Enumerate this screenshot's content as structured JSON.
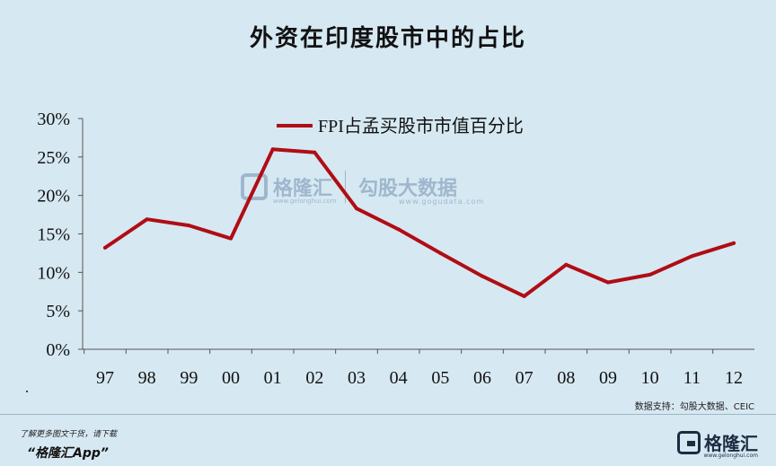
{
  "title": "外资在印度股市中的占比",
  "chart_data": {
    "type": "line",
    "categories": [
      "97",
      "98",
      "99",
      "00",
      "01",
      "02",
      "03",
      "04",
      "05",
      "06",
      "07",
      "08",
      "09",
      "10",
      "11",
      "12"
    ],
    "series": [
      {
        "name": "FPI占孟买股市市值百分比",
        "color": "#b00d14",
        "values": [
          13.2,
          16.9,
          16.1,
          14.4,
          26.0,
          25.6,
          18.3,
          15.6,
          12.5,
          9.5,
          6.9,
          11.0,
          8.7,
          9.7,
          12.1,
          13.8
        ]
      }
    ],
    "yticks": [
      "0%",
      "5%",
      "10%",
      "15%",
      "20%",
      "25%",
      "30%"
    ],
    "ylim": [
      0,
      30
    ],
    "grid": false,
    "legend_position": "top-center"
  },
  "watermark": {
    "brand": "格隆汇",
    "brand_url": "www.gelonghui.com",
    "partner": "勾股大数据",
    "partner_url": "www.gogudata.com"
  },
  "source": "数据支持：勾股大数据、CEIC",
  "footer": {
    "prompt": "了解更多图文干货，请下载",
    "app": "“格隆汇App”",
    "logo_text": "格隆汇",
    "logo_url": "www.gelonghui.com"
  }
}
